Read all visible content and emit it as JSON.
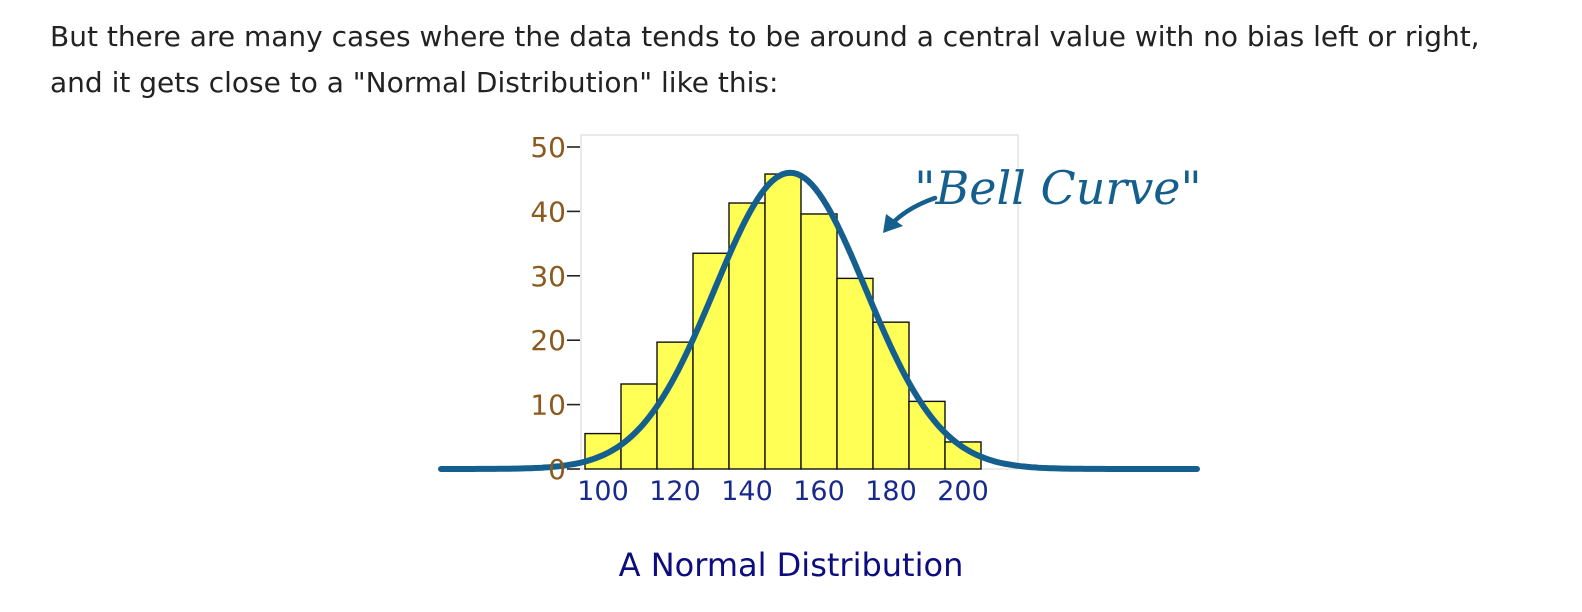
{
  "intro_text": "But there are many cases where the data tends to be around a central value with no bias left or right, and it gets close to a \"Normal Distribution\" like this:",
  "caption": "A Normal Distribution",
  "chart_data": {
    "type": "bar",
    "title": "",
    "xlabel": "",
    "ylabel": "",
    "x_ticks": [
      100,
      120,
      140,
      160,
      180,
      200
    ],
    "y_ticks": [
      0,
      10,
      20,
      30,
      40,
      50
    ],
    "ylim": [
      0,
      50
    ],
    "bin_width": 10,
    "bins": [
      {
        "start": 95,
        "value": 5.5
      },
      {
        "start": 105,
        "value": 13.2
      },
      {
        "start": 115,
        "value": 19.7
      },
      {
        "start": 125,
        "value": 33.5
      },
      {
        "start": 135,
        "value": 41.3
      },
      {
        "start": 145,
        "value": 45.8
      },
      {
        "start": 155,
        "value": 39.6
      },
      {
        "start": 165,
        "value": 29.6
      },
      {
        "start": 175,
        "value": 22.8
      },
      {
        "start": 185,
        "value": 10.5
      },
      {
        "start": 195,
        "value": 4.2
      }
    ],
    "curve": {
      "type": "normal",
      "mean": 152,
      "sd": 21,
      "peak": 46
    },
    "annotation": "\"Bell Curve\"",
    "grid": false,
    "colors": {
      "bar_fill": "#ffff55",
      "bar_stroke": "#111111",
      "curve": "#155f8f",
      "y_tick_label": "#8b5a1e",
      "x_tick_label": "#1a2a8c",
      "annotation": "#155f8f"
    }
  }
}
